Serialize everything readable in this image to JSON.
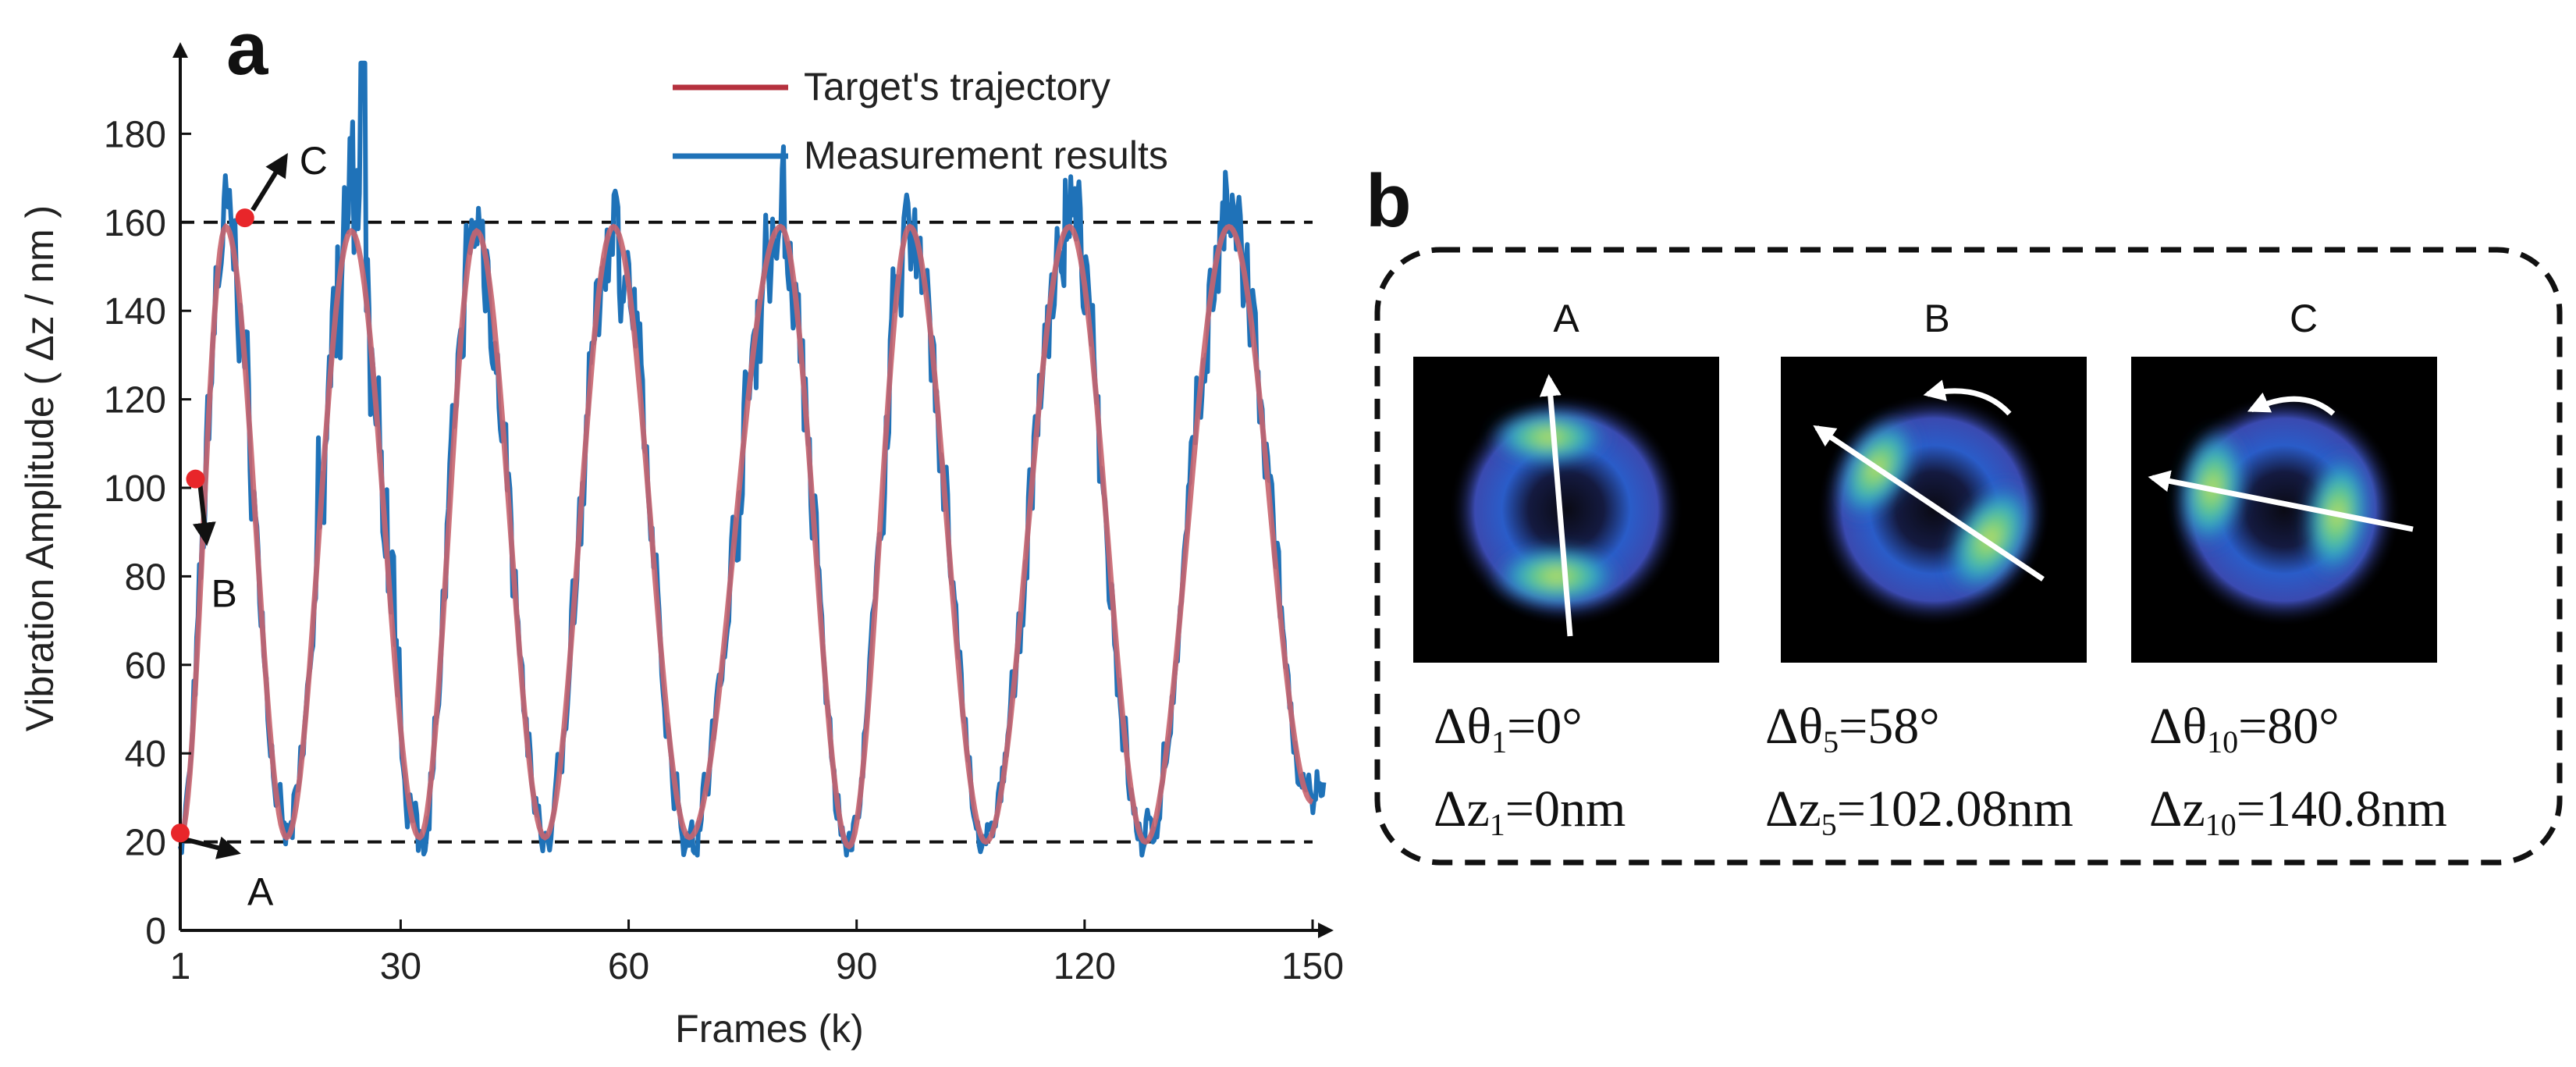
{
  "panel_a": {
    "label": "a",
    "chart_data": {
      "type": "line",
      "xlabel": "Frames (k)",
      "ylabel": "Vibration Amplitude ( Δz / nm )",
      "xlim": [
        1,
        150
      ],
      "ylim": [
        0,
        200
      ],
      "xticks": [
        1,
        30,
        60,
        90,
        120,
        150
      ],
      "xtick_labels": [
        "1",
        "30",
        "60",
        "90",
        "120",
        "150"
      ],
      "yticks": [
        0,
        20,
        40,
        60,
        80,
        100,
        120,
        140,
        160,
        180
      ],
      "ytick_labels": [
        "0",
        "20",
        "40",
        "60",
        "80",
        "100",
        "120",
        "140",
        "160",
        "180"
      ],
      "grid": false,
      "legend": "top-right",
      "reference_lines": [
        20,
        160
      ],
      "series": [
        {
          "name": "Target's trajectory",
          "color": "#C8646E",
          "peaks": [
            [
              7,
              159
            ],
            [
              23.5,
              158
            ],
            [
              40,
              158
            ],
            [
              58,
              159
            ],
            [
              80,
              159
            ],
            [
              97,
              159
            ],
            [
              118,
              159
            ],
            [
              139,
              159
            ]
          ],
          "troughs": [
            [
              1,
              21
            ],
            [
              15,
              21
            ],
            [
              32.5,
              21
            ],
            [
              49,
              21
            ],
            [
              68,
              21
            ],
            [
              89,
              19
            ],
            [
              107,
              20
            ],
            [
              128,
              20
            ],
            [
              150,
              29
            ]
          ]
        },
        {
          "name": "Measurement results",
          "color": "#1F72B8",
          "max_peak": [
            25,
            196
          ],
          "noise": 11
        }
      ],
      "markers": [
        {
          "label": "A",
          "x": 1,
          "y": 22
        },
        {
          "label": "B",
          "x": 3,
          "y": 102
        },
        {
          "label": "C",
          "x": 9.5,
          "y": 161
        }
      ]
    }
  },
  "panel_b": {
    "label": "b",
    "images": [
      {
        "title": "A",
        "theta_symbol": "Δθ",
        "theta_sub": "1",
        "theta_value": "=0°",
        "z_symbol": "Δz",
        "z_sub": "1",
        "z_value": "=0nm"
      },
      {
        "title": "B",
        "theta_symbol": "Δθ",
        "theta_sub": "5",
        "theta_value": "=58°",
        "z_symbol": "Δz",
        "z_sub": "5",
        "z_value": "=102.08nm"
      },
      {
        "title": "C",
        "theta_symbol": "Δθ",
        "theta_sub": "10",
        "theta_value": "=80°",
        "z_symbol": "Δz",
        "z_sub": "10",
        "z_value": "=140.8nm"
      }
    ]
  }
}
